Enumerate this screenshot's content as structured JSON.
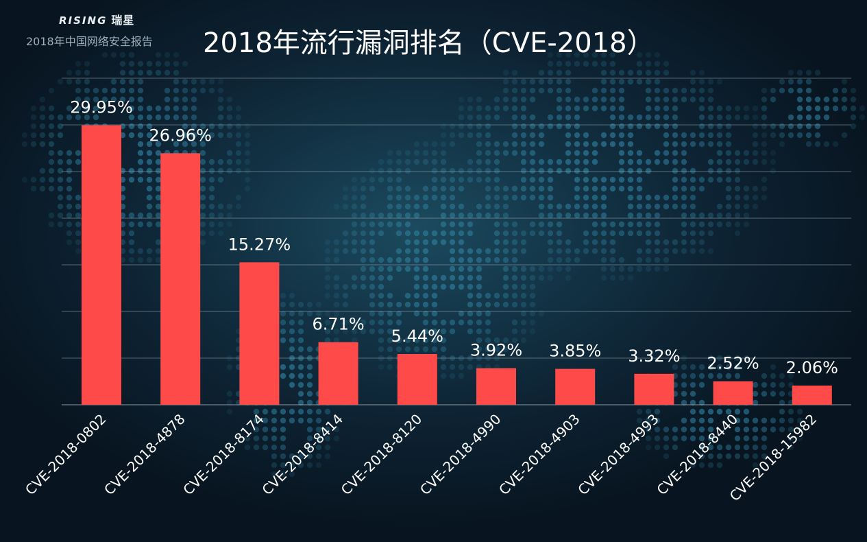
{
  "header": {
    "brand_en": "RISING",
    "brand_cn": "瑞星",
    "report_name": "2018年中国网络安全报告",
    "title": "2018年流行漏洞排名（CVE-2018）"
  },
  "colors": {
    "bar": "#ff4a4a",
    "gridline": "#9aa7b0",
    "label": "#ffffff"
  },
  "chart_data": {
    "type": "bar",
    "title": "2018年流行漏洞排名（CVE-2018）",
    "categories": [
      "CVE-2018-0802",
      "CVE-2018-4878",
      "CVE-2018-8174",
      "CVE-2018-8414",
      "CVE-2018-8120",
      "CVE-2018-4990",
      "CVE-2018-4903",
      "CVE-2018-4993",
      "CVE-2018-8440",
      "CVE-2018-15982"
    ],
    "values": [
      29.95,
      26.96,
      15.27,
      6.71,
      5.44,
      3.92,
      3.85,
      3.32,
      2.52,
      2.06
    ],
    "data_labels": [
      "29.95%",
      "26.96%",
      "15.27%",
      "6.71%",
      "5.44%",
      "3.92%",
      "3.85%",
      "3.32%",
      "2.52%",
      "2.06%"
    ],
    "unit": "%",
    "ylim": [
      0,
      35
    ],
    "grid": true,
    "ytick_step": 5,
    "xlabel": "",
    "ylabel": ""
  }
}
